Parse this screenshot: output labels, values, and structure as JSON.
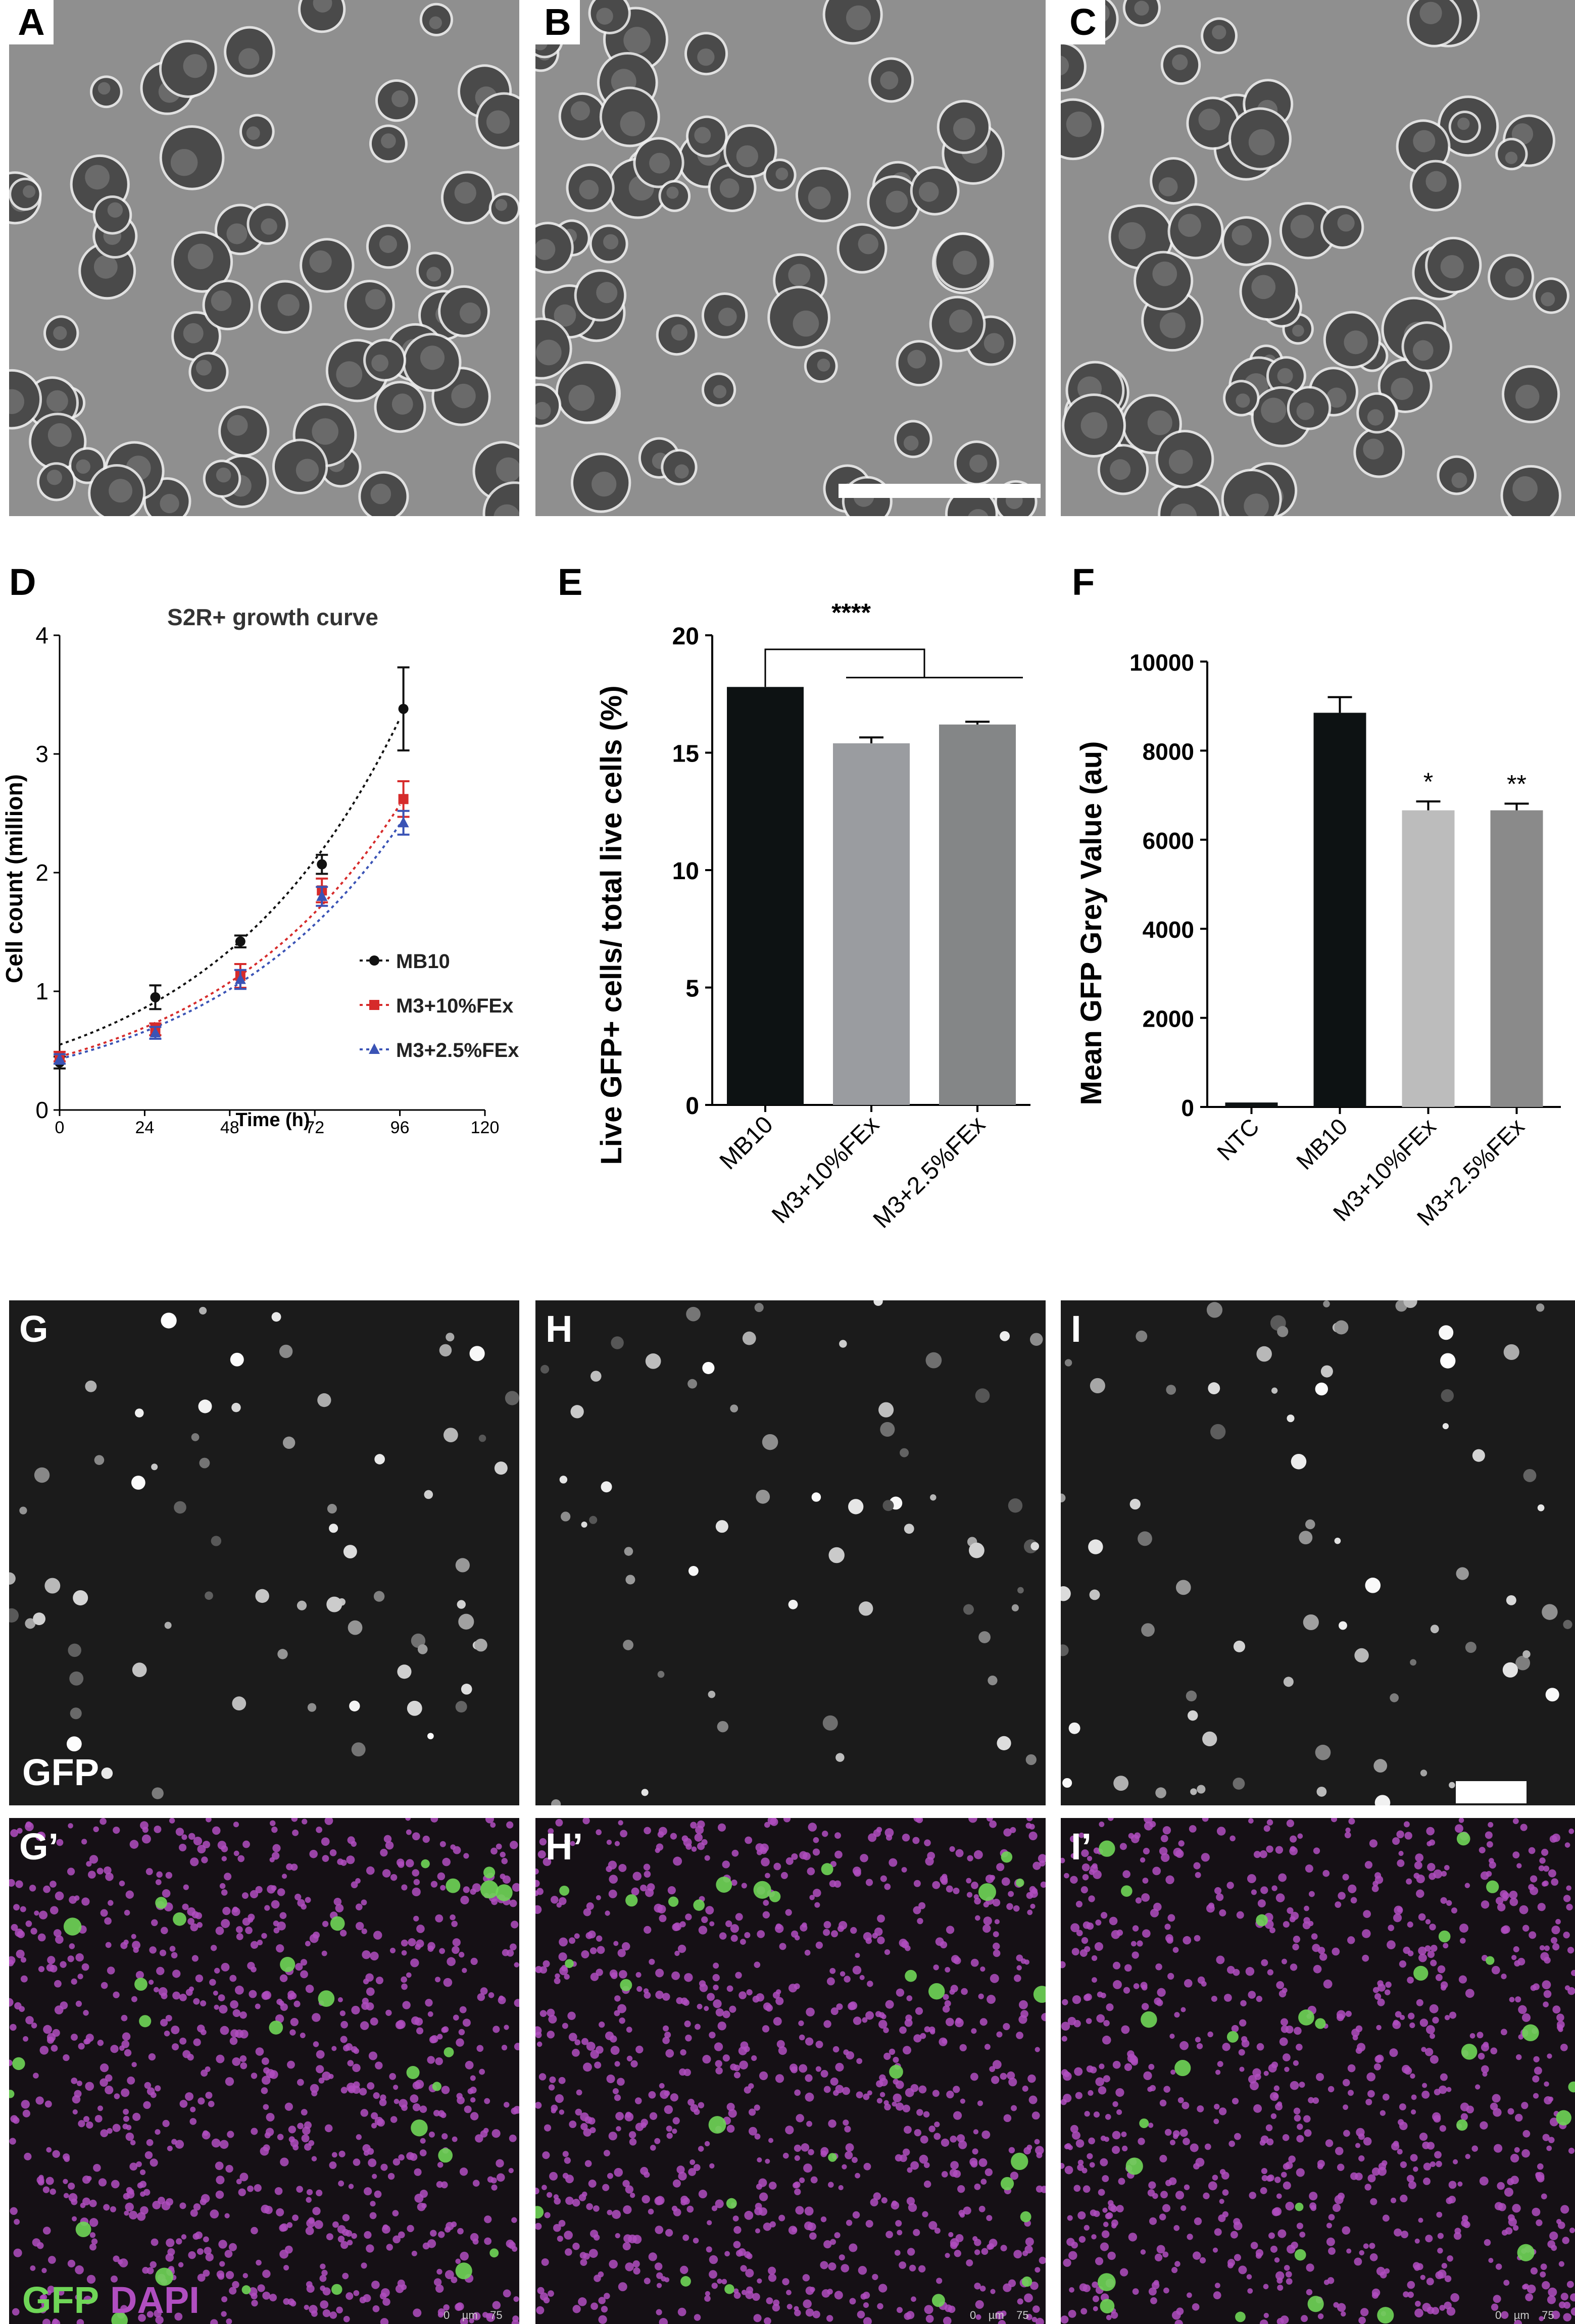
{
  "panels": {
    "A": "A",
    "B": "B",
    "C": "C",
    "D": "D",
    "E": "E",
    "F": "F",
    "G": "G",
    "H": "H",
    "I": "I",
    "Gp": "G’",
    "Hp": "H’",
    "Ip": "I’"
  },
  "fluor_labels": {
    "gfp": "GFP",
    "gfp_merge": "GFP",
    "dapi_merge": "DAPI"
  },
  "micro_scale": {
    "zero": "0",
    "unit": "µm",
    "max": "75"
  },
  "colors": {
    "gfp": "#6fd657",
    "dapi": "#b04ec0",
    "mb10": "#111111",
    "m3_10": "#d62b2b",
    "m3_25": "#3a53b5"
  },
  "chart_data": [
    {
      "type": "line",
      "title": "S2R+ growth curve",
      "xlabel": "Time (h)",
      "ylabel": "Cell count (million)",
      "xlim": [
        0,
        120
      ],
      "ylim": [
        0,
        4
      ],
      "xticks": [
        "0",
        "24",
        "48",
        "72",
        "96",
        "120"
      ],
      "yticks": [
        "0",
        "1",
        "2",
        "3",
        "4"
      ],
      "x": [
        0,
        27,
        51,
        74,
        97
      ],
      "series": [
        {
          "name": "MB10",
          "values": [
            0.4,
            0.95,
            1.42,
            2.07,
            3.38
          ],
          "errors": [
            0.05,
            0.1,
            0.05,
            0.08,
            0.35
          ],
          "fit": [
            0.55,
            3.36
          ],
          "color": "#111111",
          "marker": "circle"
        },
        {
          "name": "M3+10%FEx",
          "values": [
            0.45,
            0.68,
            1.13,
            1.85,
            2.62
          ],
          "errors": [
            0.04,
            0.05,
            0.1,
            0.1,
            0.15
          ],
          "fit": [
            0.45,
            2.62
          ],
          "color": "#d62b2b",
          "marker": "square"
        },
        {
          "name": "M3+2.5%FEx",
          "values": [
            0.43,
            0.65,
            1.1,
            1.8,
            2.42
          ],
          "errors": [
            0.04,
            0.05,
            0.08,
            0.08,
            0.1
          ],
          "fit": [
            0.43,
            2.45
          ],
          "color": "#3a53b5",
          "marker": "triangle"
        }
      ]
    },
    {
      "type": "bar",
      "ylabel": "Live GFP+ cells/ total live cells (%)",
      "categories": [
        "MB10",
        "M3+10%FEx",
        "M3+2.5%FEx"
      ],
      "values": [
        17.8,
        15.4,
        16.2
      ],
      "errors": [
        0,
        0.25,
        0.12
      ],
      "colors": [
        "#0d1213",
        "#9a9ca0",
        "#848687"
      ],
      "ylim": [
        0,
        20
      ],
      "yticks": [
        "0",
        "5",
        "10",
        "15",
        "20"
      ],
      "annotation": "****"
    },
    {
      "type": "bar",
      "ylabel": "Mean GFP Grey Value (au)",
      "categories": [
        "NTC",
        "MB10",
        "M3+10%FEx",
        "M3+2.5%FEx"
      ],
      "values": [
        100,
        8850,
        6660,
        6660
      ],
      "errors": [
        0,
        350,
        200,
        150
      ],
      "colors": [
        "#0d1213",
        "#0d1213",
        "#bcbcbc",
        "#8a8a8a"
      ],
      "significance": [
        "",
        "",
        "*",
        "**"
      ],
      "ylim": [
        0,
        10000
      ],
      "yticks": [
        "0",
        "2000",
        "4000",
        "6000",
        "8000",
        "10000"
      ]
    }
  ]
}
